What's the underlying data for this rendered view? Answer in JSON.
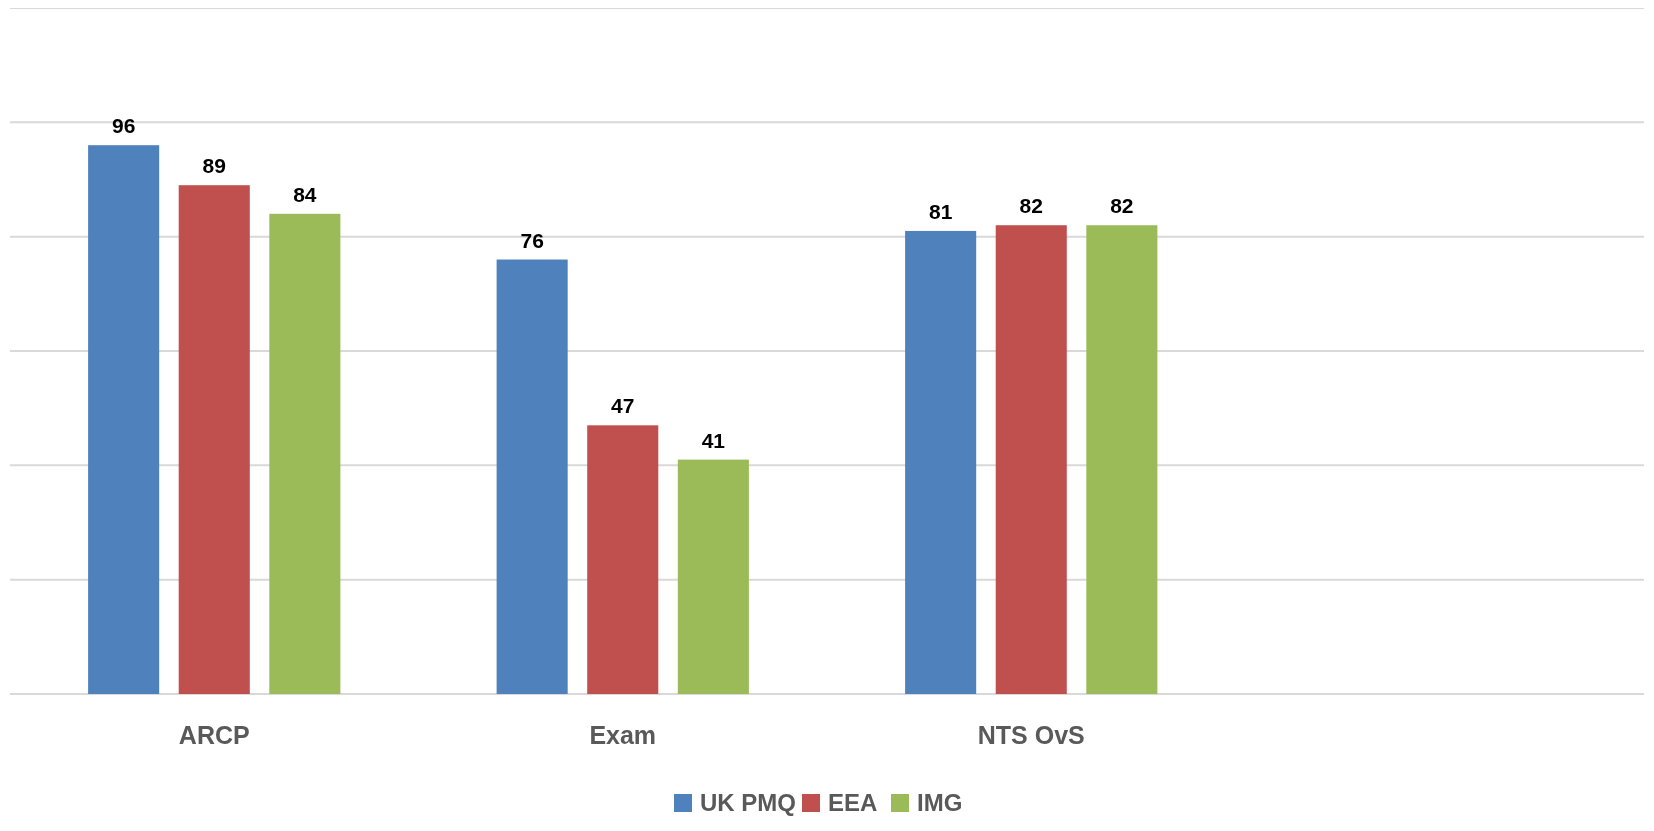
{
  "chart_data": {
    "type": "bar",
    "categories": [
      "ARCP",
      "Exam",
      "NTS OvS",
      null
    ],
    "series": [
      {
        "name": "UK PMQ",
        "color": "#4f81bd",
        "values": [
          96,
          76,
          81,
          null
        ]
      },
      {
        "name": "EEA",
        "color": "#c0504d",
        "values": [
          89,
          47,
          82,
          null
        ]
      },
      {
        "name": "IMG",
        "color": "#9bbb59",
        "values": [
          84,
          41,
          82,
          null
        ]
      }
    ],
    "ylim": [
      0,
      120
    ],
    "yticks": [
      {
        "value": 0,
        "label": null
      },
      {
        "value": 20,
        "label": null
      },
      {
        "value": 40,
        "label": null
      },
      {
        "value": 60,
        "label": null
      },
      {
        "value": 80,
        "label": null
      },
      {
        "value": 100,
        "label": null
      },
      {
        "value": 120,
        "label": null
      }
    ],
    "tick_labels": "x",
    "grid": "y",
    "data_labels": true,
    "legend": "bottom"
  }
}
